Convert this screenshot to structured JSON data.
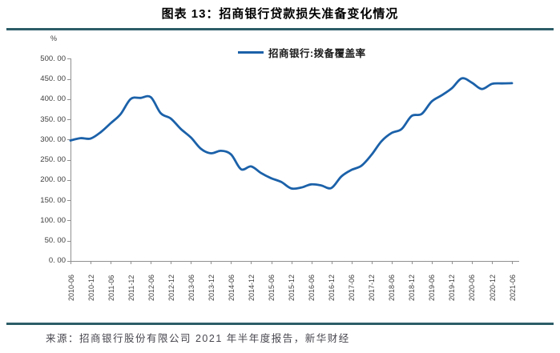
{
  "header": {
    "title": "图表 13：招商银行贷款损失准备变化情况"
  },
  "footer": {
    "source": "来源：招商银行股份有限公司 2021 年半年度报告，新华财经"
  },
  "colors": {
    "divider": "#2c5d68",
    "line": "#1b61a9",
    "axis": "#909090",
    "tick_text": "#3d3d3d",
    "source_text": "#47474f"
  },
  "chart_data": {
    "type": "line",
    "title": "招商银行:拨备覆盖率",
    "y_unit": "%",
    "xlabel": "",
    "ylabel": "%",
    "ylim": [
      0,
      500
    ],
    "grid": false,
    "legend_position": "top-center",
    "series": [
      {
        "name": "招商银行:拨备覆盖率",
        "values": [
          297.6,
          303.4,
          302.4,
          318.0,
          340.2,
          363.0,
          400.1,
          403.0,
          404.7,
          365.0,
          351.8,
          326.0,
          305.0,
          277.0,
          266.0,
          272.0,
          263.1,
          226.6,
          233.4,
          217.0,
          204.2,
          195.0,
          179.0,
          181.1,
          189.1,
          186.4,
          180.0,
          208.8,
          224.7,
          235.2,
          262.1,
          295.9,
          316.1,
          326.0,
          358.2,
          363.2,
          394.1,
          409.4,
          426.8,
          451.3,
          440.8,
          424.9,
          437.7,
          438.9,
          439.5
        ]
      }
    ],
    "x": [
      "2010-06",
      "2010-09",
      "2010-12",
      "2011-03",
      "2011-06",
      "2011-09",
      "2011-12",
      "2012-03",
      "2012-06",
      "2012-09",
      "2012-12",
      "2013-03",
      "2013-06",
      "2013-09",
      "2013-12",
      "2014-03",
      "2014-06",
      "2014-09",
      "2014-12",
      "2015-03",
      "2015-06",
      "2015-09",
      "2015-12",
      "2016-03",
      "2016-06",
      "2016-09",
      "2016-12",
      "2017-03",
      "2017-06",
      "2017-09",
      "2017-12",
      "2018-03",
      "2018-06",
      "2018-09",
      "2018-12",
      "2019-03",
      "2019-06",
      "2019-09",
      "2019-12",
      "2020-03",
      "2020-06",
      "2020-09",
      "2020-12",
      "2021-03",
      "2021-06"
    ],
    "x_tick_labels": [
      "2010-06",
      "2010-12",
      "2011-06",
      "2011-12",
      "2012-06",
      "2012-12",
      "2013-06",
      "2013-12",
      "2014-06",
      "2014-12",
      "2015-06",
      "2015-12",
      "2016-06",
      "2016-12",
      "2017-06",
      "2017-12",
      "2018-06",
      "2018-12",
      "2019-06",
      "2019-12",
      "2020-06",
      "2020-12",
      "2021-06"
    ],
    "y_tick_values": [
      500,
      450,
      400,
      350,
      300,
      250,
      200,
      150,
      100,
      50,
      0
    ],
    "y_tick_labels": [
      "500. 00",
      "450. 00",
      "400. 00",
      "350. 00",
      "300. 00",
      "250. 00",
      "200. 00",
      "150. 00",
      "100. 00",
      "50. 00",
      "0. 00"
    ]
  }
}
